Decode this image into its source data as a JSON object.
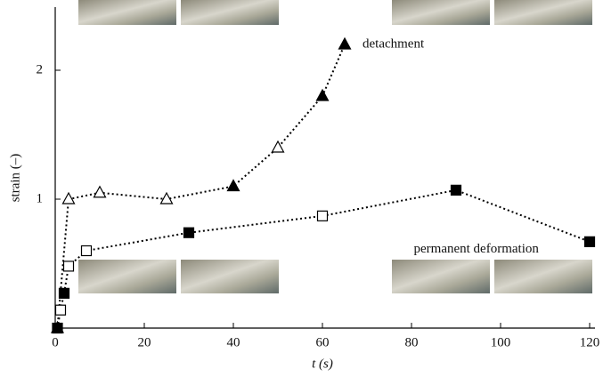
{
  "chart_data": {
    "type": "line",
    "x_label": "t (s)",
    "y_label": "strain (–)",
    "xlim": [
      0,
      120
    ],
    "ylim": [
      0,
      2.5
    ],
    "xticks": [
      0,
      20,
      40,
      60,
      80,
      100,
      120
    ],
    "yticks": [
      1,
      2
    ],
    "series": [
      {
        "marker": "triangle",
        "color": "#000",
        "x": [
          0.5,
          3,
          10,
          25,
          40,
          50,
          60,
          65
        ],
        "values": [
          0,
          1.0,
          1.05,
          1.0,
          1.1,
          1.4,
          1.8,
          2.2
        ],
        "filled": [
          true,
          false,
          false,
          false,
          true,
          false,
          true,
          true
        ]
      },
      {
        "marker": "square",
        "color": "#000",
        "x": [
          0.5,
          1.2,
          2,
          3,
          7,
          30,
          60,
          90,
          120
        ],
        "values": [
          0,
          0.14,
          0.27,
          0.48,
          0.6,
          0.74,
          0.87,
          1.07,
          0.67
        ],
        "filled": [
          true,
          false,
          true,
          false,
          false,
          true,
          false,
          true,
          true
        ]
      }
    ],
    "annotations": [
      {
        "text": "detachment",
        "x": 69,
        "y": 2.2
      },
      {
        "text": "permanent deformation",
        "x": 80.5,
        "y": 0.61
      }
    ]
  }
}
